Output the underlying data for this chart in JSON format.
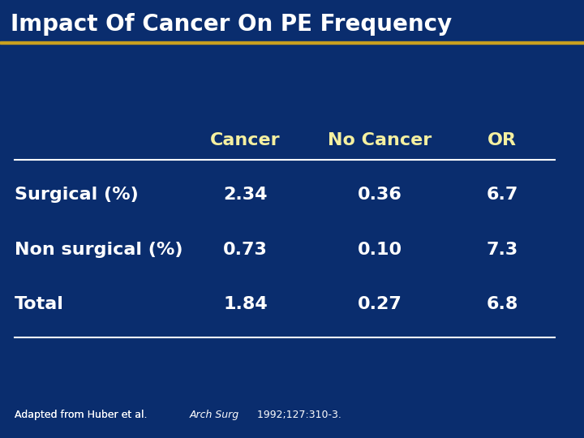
{
  "title": "Impact Of Cancer On PE Frequency",
  "background_color": "#0a2d6e",
  "title_color": "#ffffff",
  "title_fontsize": 20,
  "header_color": "#f5f0a0",
  "data_color": "#ffffff",
  "row_label_color": "#ffffff",
  "line_color": "#ffffff",
  "headers": [
    "Cancer",
    "No Cancer",
    "OR"
  ],
  "rows": [
    {
      "label": "Surgical (%)",
      "values": [
        "2.34",
        "0.36",
        "6.7"
      ]
    },
    {
      "label": "Non surgical (%)",
      "values": [
        "0.73",
        "0.10",
        "7.3"
      ]
    },
    {
      "label": "Total",
      "values": [
        "1.84",
        "0.27",
        "6.8"
      ]
    }
  ],
  "footnote": "Adapted from Huber et al. ",
  "footnote_italic": "Arch Surg",
  "footnote_rest": " 1992;127:310-3.",
  "footnote_color": "#ffffff",
  "footnote_fontsize": 9,
  "title_bar_color": "#c8a020",
  "header_fontsize": 16,
  "data_fontsize": 16,
  "label_fontsize": 16
}
